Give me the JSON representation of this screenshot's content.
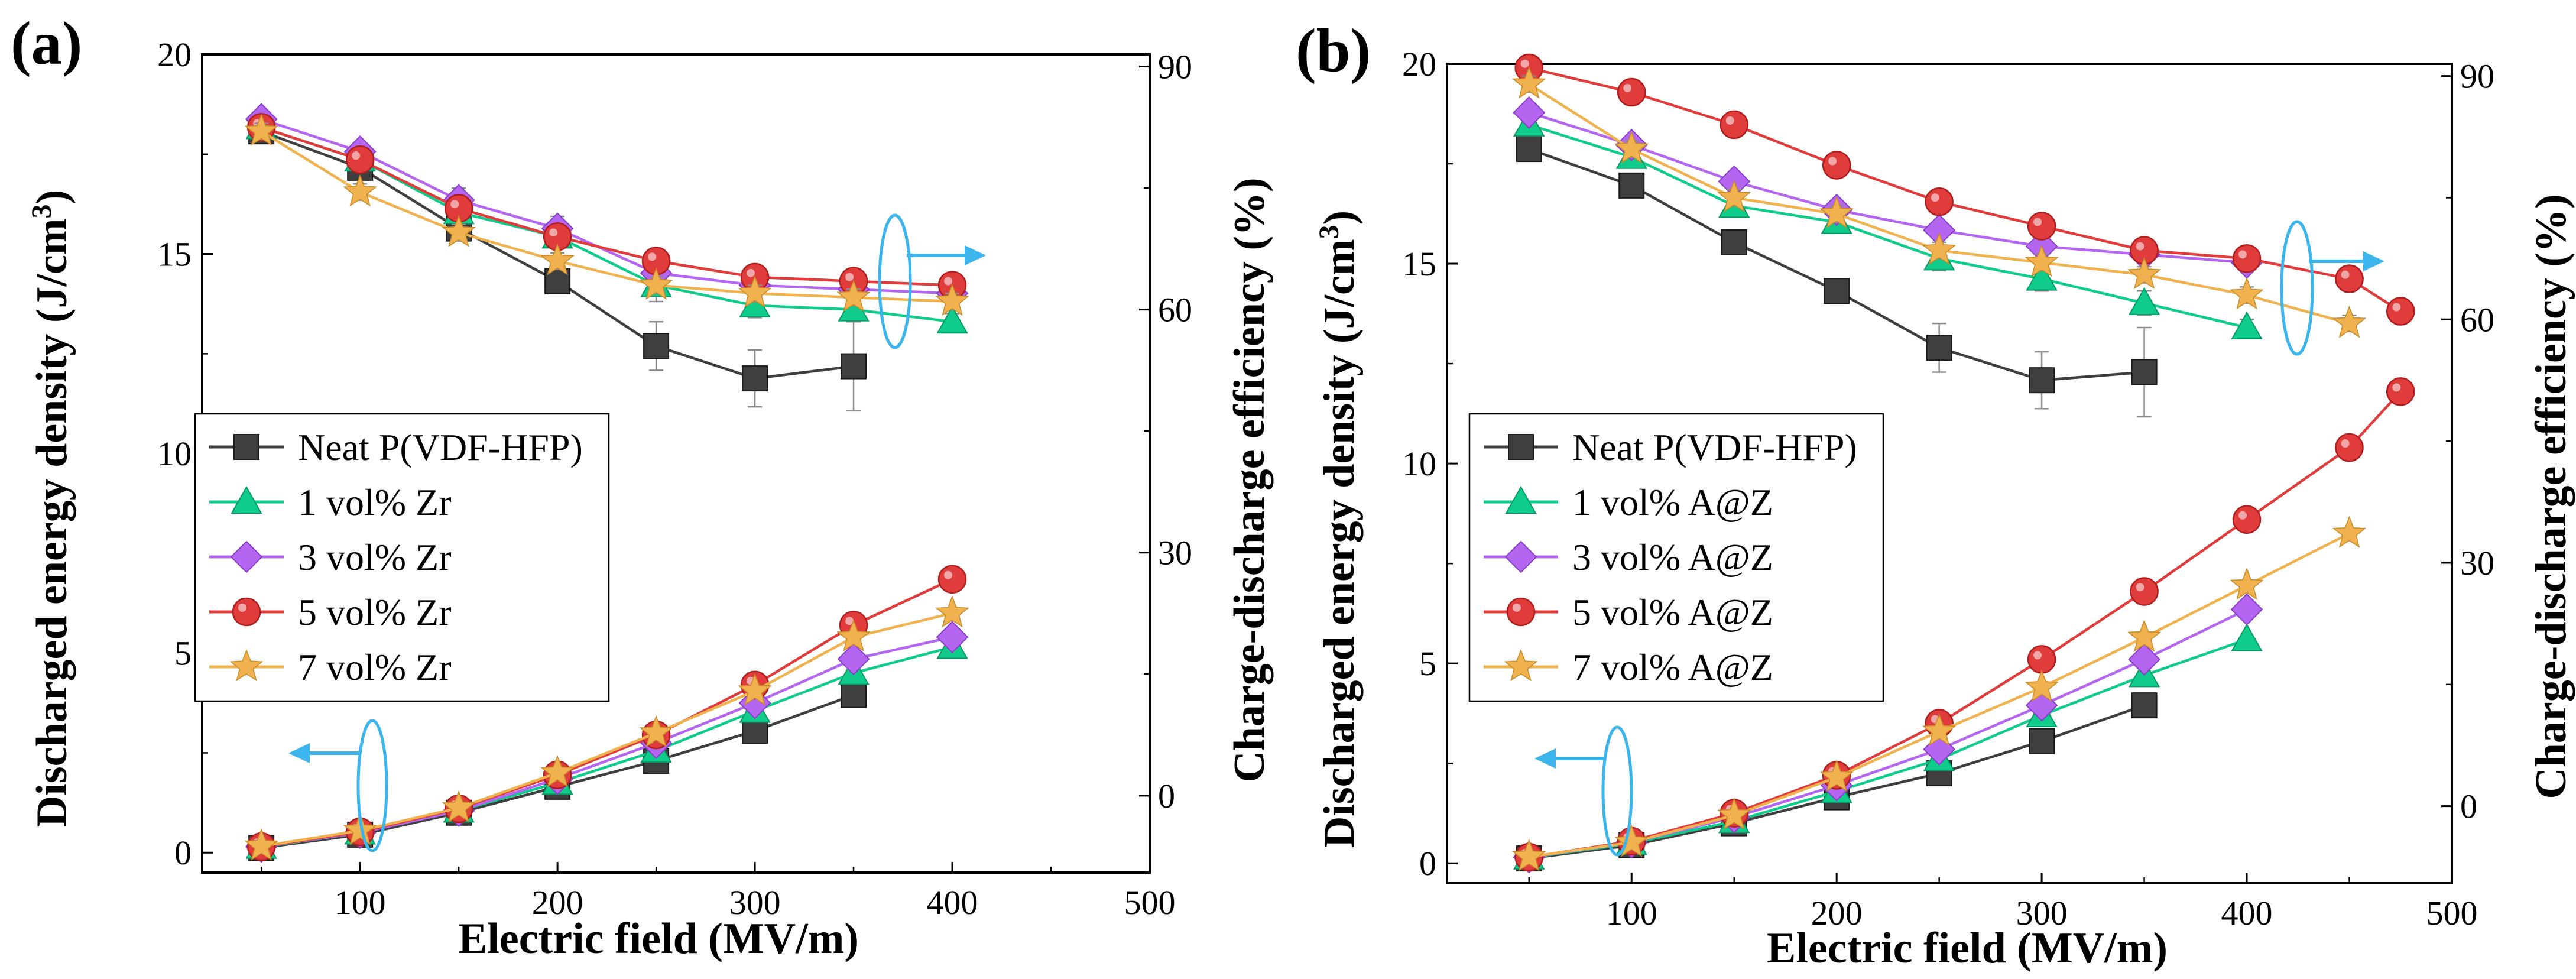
{
  "chart_data": [
    {
      "type": "line",
      "panel_label": "(a)",
      "xlabel": "Electric field (MV/m)",
      "ylabel": "Discharged energy density (J/cm³)",
      "ylabel_main": "Discharged energy density (J/cm",
      "ylabel_sup": "3",
      "ylabel_end": ")",
      "y2label": "Charge-discharge efficiency (%)",
      "xlim": [
        20,
        500
      ],
      "xticks": [
        100,
        200,
        300,
        400,
        500
      ],
      "ylim": [
        -0.5,
        20
      ],
      "yticks": [
        0,
        5,
        10,
        15,
        20
      ],
      "y2lim": [
        -9.5,
        91.5
      ],
      "y2ticks": [
        0,
        30,
        60,
        90
      ],
      "grid": false,
      "legend_position": "center-left",
      "series": [
        {
          "name": "Neat P(VDF-HFP)",
          "color": "#3f3f3f",
          "marker": "square",
          "x": [
            50,
            100,
            150,
            200,
            250,
            300,
            350
          ],
          "energy": [
            0.12,
            0.45,
            1.0,
            1.65,
            2.3,
            3.05,
            3.95
          ],
          "efficiency": [
            82,
            77.5,
            70,
            63.5,
            55.5,
            51.5,
            53
          ],
          "efficiency_err": [
            1,
            1,
            1.5,
            1.5,
            3,
            3.5,
            5.5
          ]
        },
        {
          "name": "1 vol% Zr",
          "color": "#10cc8a",
          "marker": "triangle",
          "x": [
            50,
            100,
            150,
            200,
            250,
            300,
            350,
            400
          ],
          "energy": [
            0.14,
            0.5,
            1.05,
            1.75,
            2.55,
            3.55,
            4.5,
            5.15
          ],
          "efficiency": [
            82.5,
            78.5,
            72,
            69,
            63,
            60.5,
            60,
            58.5
          ],
          "efficiency_err": [
            1,
            1,
            1,
            1,
            2,
            1.5,
            1.5,
            1
          ]
        },
        {
          "name": "3 vol% Zr",
          "color": "#b566f0",
          "marker": "diamond",
          "x": [
            50,
            100,
            150,
            200,
            250,
            300,
            350,
            400
          ],
          "energy": [
            0.15,
            0.5,
            1.05,
            1.85,
            2.75,
            3.75,
            4.85,
            5.4
          ],
          "efficiency": [
            83.5,
            79.5,
            73.5,
            70,
            64.5,
            63,
            62.5,
            62
          ],
          "efficiency_err": [
            1,
            1,
            1.5,
            1.5,
            1.5,
            1,
            1,
            1
          ]
        },
        {
          "name": "5 vol% Zr",
          "color": "#e03c3c",
          "marker": "circle",
          "x": [
            50,
            100,
            150,
            200,
            250,
            300,
            350,
            400
          ],
          "energy": [
            0.15,
            0.52,
            1.1,
            1.95,
            2.95,
            4.2,
            5.7,
            6.85
          ],
          "efficiency": [
            82.5,
            78.5,
            72.5,
            69,
            66,
            64,
            63.5,
            63
          ],
          "efficiency_err": [
            1,
            1,
            1,
            1,
            1,
            1,
            1,
            1
          ]
        },
        {
          "name": "7 vol% Zr",
          "color": "#f0b24e",
          "marker": "star",
          "x": [
            50,
            100,
            150,
            200,
            250,
            300,
            350,
            400
          ],
          "energy": [
            0.16,
            0.55,
            1.12,
            2.0,
            3.0,
            4.05,
            5.4,
            6.0
          ],
          "efficiency": [
            82,
            74.5,
            69.5,
            66,
            63,
            62,
            61.5,
            61
          ],
          "efficiency_err": [
            1,
            1,
            1,
            1,
            1,
            1,
            1,
            1
          ]
        }
      ]
    },
    {
      "type": "line",
      "panel_label": "(b)",
      "xlabel": "Electric field (MV/m)",
      "ylabel": "Discharged energy density (J/cm³)",
      "ylabel_main": "Discharged energy density (J/cm",
      "ylabel_sup": "3",
      "ylabel_end": ")",
      "y2label": "Charge-discharge efficiency (%)",
      "xlim": [
        10,
        500
      ],
      "xticks": [
        100,
        200,
        300,
        400,
        500
      ],
      "ylim": [
        -0.5,
        20
      ],
      "yticks": [
        0,
        5,
        10,
        15,
        20
      ],
      "y2lim": [
        -9.5,
        91.5
      ],
      "y2ticks": [
        0,
        30,
        60,
        90
      ],
      "grid": false,
      "legend_position": "center-left",
      "series": [
        {
          "name": "Neat P(VDF-HFP)",
          "color": "#3f3f3f",
          "marker": "square",
          "x": [
            50,
            100,
            150,
            200,
            250,
            300,
            350
          ],
          "energy": [
            0.12,
            0.45,
            1.0,
            1.65,
            2.25,
            3.05,
            3.95
          ],
          "efficiency": [
            81,
            76.5,
            69.5,
            63.5,
            56.5,
            52.5,
            53.5
          ],
          "efficiency_err": [
            1,
            1,
            1.5,
            1.5,
            3,
            3.5,
            5.5
          ]
        },
        {
          "name": "1 vol% A@Z",
          "color": "#10cc8a",
          "marker": "triangle",
          "x": [
            50,
            100,
            150,
            200,
            250,
            300,
            350,
            400
          ],
          "energy": [
            0.14,
            0.5,
            1.05,
            1.8,
            2.6,
            3.7,
            4.7,
            5.6
          ],
          "efficiency": [
            84,
            80,
            74,
            72,
            67.5,
            65,
            62,
            59
          ],
          "efficiency_err": [
            1,
            1,
            1,
            1,
            1.5,
            1.5,
            1.5,
            1
          ]
        },
        {
          "name": "3 vol% A@Z",
          "color": "#b566f0",
          "marker": "diamond",
          "x": [
            50,
            100,
            150,
            200,
            250,
            300,
            350,
            400
          ],
          "energy": [
            0.15,
            0.52,
            1.15,
            1.95,
            2.85,
            3.95,
            5.1,
            6.35
          ],
          "efficiency": [
            85.5,
            81.5,
            77,
            73.5,
            71,
            69,
            68,
            67
          ],
          "efficiency_err": [
            1,
            1,
            1,
            1,
            1,
            1,
            1,
            1
          ]
        },
        {
          "name": "5 vol% A@Z",
          "color": "#e03c3c",
          "marker": "circle",
          "x": [
            50,
            100,
            150,
            200,
            250,
            300,
            350,
            400,
            450,
            475
          ],
          "energy": [
            0.15,
            0.55,
            1.25,
            2.2,
            3.5,
            5.1,
            6.8,
            8.6,
            10.4,
            11.8
          ],
          "efficiency": [
            91,
            88,
            84,
            79,
            74.5,
            71.5,
            68.5,
            67.5,
            65,
            61
          ],
          "efficiency_err": [
            1,
            1,
            1,
            1,
            1,
            1,
            1,
            1,
            1,
            1
          ]
        },
        {
          "name": "7 vol% A@Z",
          "color": "#f0b24e",
          "marker": "star",
          "x": [
            50,
            100,
            150,
            200,
            250,
            300,
            350,
            400,
            450
          ],
          "energy": [
            0.16,
            0.52,
            1.2,
            2.15,
            3.3,
            4.4,
            5.65,
            6.95,
            8.25
          ],
          "efficiency": [
            89,
            81,
            75,
            73,
            68.5,
            67,
            65.5,
            63,
            59.5
          ],
          "efficiency_err": [
            1,
            1,
            1,
            1,
            1,
            1,
            1,
            1,
            1
          ]
        }
      ]
    }
  ]
}
